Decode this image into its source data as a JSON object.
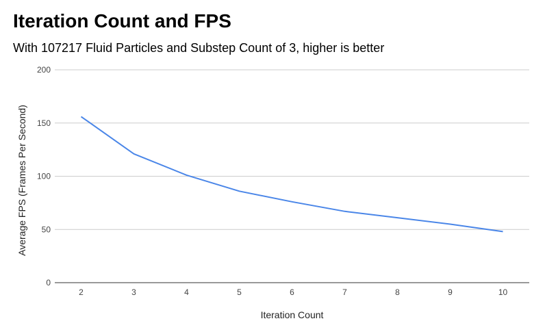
{
  "chart_data": {
    "type": "line",
    "title": "Iteration Count and FPS",
    "subtitle": "With 107217 Fluid Particles and Substep Count of 3, higher is better",
    "xlabel": "Iteration Count",
    "ylabel": "Average FPS (Frames Per Second)",
    "x": [
      2,
      3,
      4,
      5,
      6,
      7,
      8,
      9,
      10
    ],
    "series": [
      {
        "name": "",
        "values": [
          156,
          121,
          101,
          86,
          76,
          67,
          61,
          55,
          48
        ]
      }
    ],
    "ylim": [
      0,
      200
    ],
    "yticks": [
      0,
      50,
      100,
      150,
      200
    ],
    "grid": true,
    "legend": "none",
    "colors": {
      "line": "#4a86e8",
      "grid": "#cccccc",
      "axis": "#333333"
    }
  }
}
